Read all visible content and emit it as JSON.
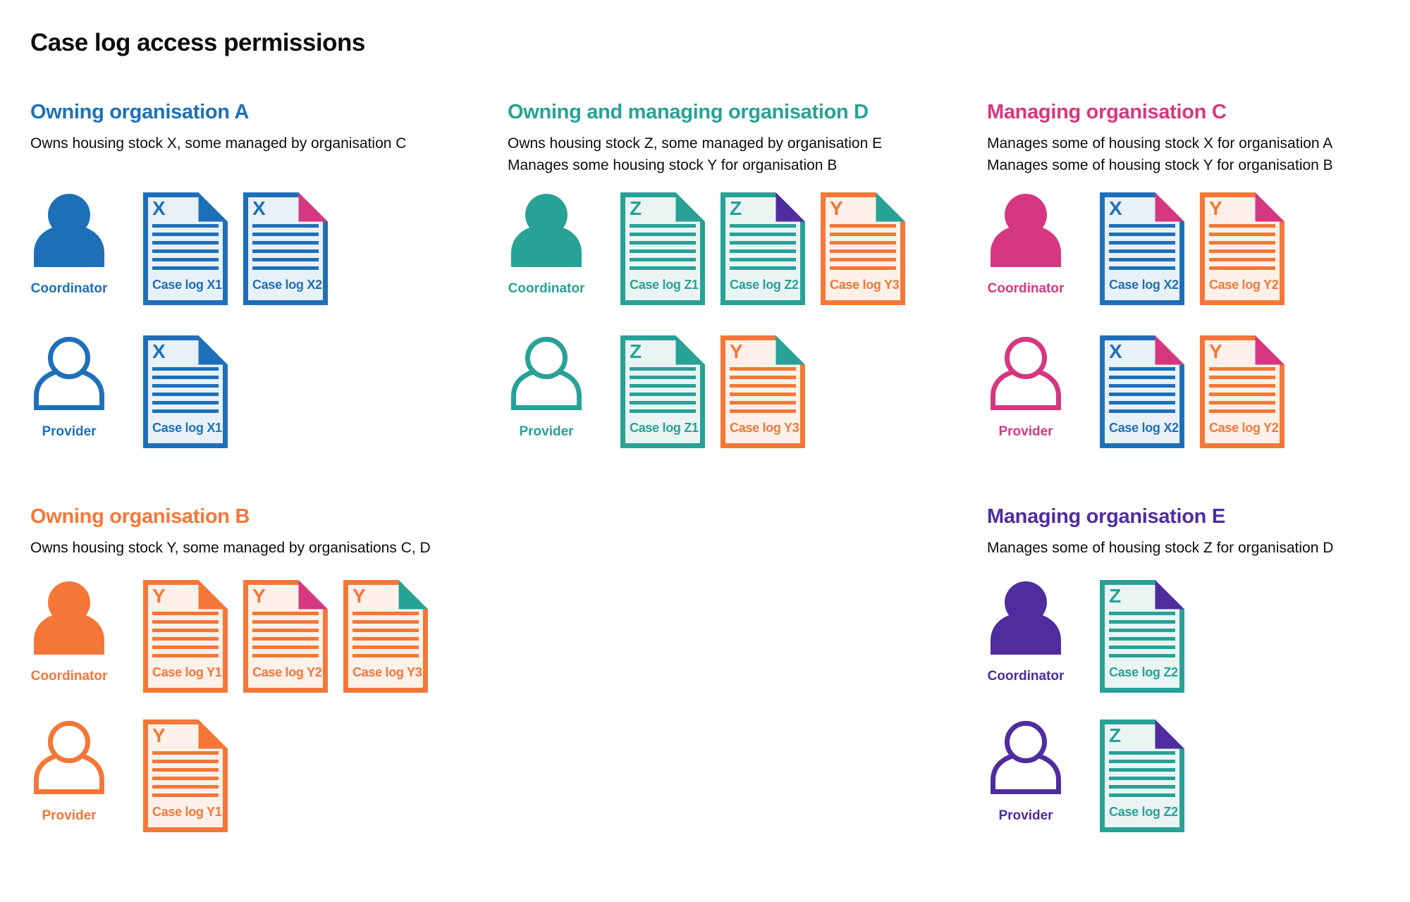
{
  "page_title": "Case log access permissions",
  "palette": {
    "blue": {
      "main": "#1d70b8",
      "tint": "#e9f1f8"
    },
    "teal": {
      "main": "#28a197",
      "tint": "#eaf5f3"
    },
    "pink": {
      "main": "#d53880",
      "tint": "#fbebf3"
    },
    "orange": {
      "main": "#f47738",
      "tint": "#fdf1ea"
    },
    "purple": {
      "main": "#4f2d9e",
      "tint": "#ece8f5"
    },
    "text": "#0b0c0c"
  },
  "sections": [
    {
      "id": "owning-organisation-a",
      "title": "Owning organisation A",
      "color": "blue",
      "description_lines": [
        "Owns housing stock X, some managed by organisation C"
      ],
      "access_rows": [
        {
          "role_label": "Coordinator",
          "icon": "person-filled",
          "case_logs": [
            {
              "stock_letter": "X",
              "label": "Case log X1",
              "color": "blue",
              "fold_color": "blue"
            },
            {
              "stock_letter": "X",
              "label": "Case log X2",
              "color": "blue",
              "fold_color": "pink"
            }
          ]
        },
        {
          "role_label": "Provider",
          "icon": "person-outline",
          "case_logs": [
            {
              "stock_letter": "X",
              "label": "Case log X1",
              "color": "blue",
              "fold_color": "blue"
            }
          ]
        }
      ]
    },
    {
      "id": "owning-and-managing-organisation-d",
      "title": "Owning and managing organisation D",
      "color": "teal",
      "description_lines": [
        "Owns housing stock Z, some managed by organisation E",
        "Manages some housing stock Y for organisation B"
      ],
      "access_rows": [
        {
          "role_label": "Coordinator",
          "icon": "person-filled",
          "case_logs": [
            {
              "stock_letter": "Z",
              "label": "Case log Z1",
              "color": "teal",
              "fold_color": "teal"
            },
            {
              "stock_letter": "Z",
              "label": "Case log Z2",
              "color": "teal",
              "fold_color": "purple"
            },
            {
              "stock_letter": "Y",
              "label": "Case log Y3",
              "color": "orange",
              "fold_color": "teal"
            }
          ]
        },
        {
          "role_label": "Provider",
          "icon": "person-outline",
          "case_logs": [
            {
              "stock_letter": "Z",
              "label": "Case log Z1",
              "color": "teal",
              "fold_color": "teal"
            },
            {
              "stock_letter": "Y",
              "label": "Case log Y3",
              "color": "orange",
              "fold_color": "teal"
            }
          ]
        }
      ]
    },
    {
      "id": "managing-organisation-c",
      "title": "Managing organisation C",
      "color": "pink",
      "description_lines": [
        "Manages some of housing stock X for organisation A",
        "Manages some of housing stock Y for organisation B"
      ],
      "access_rows": [
        {
          "role_label": "Coordinator",
          "icon": "person-filled",
          "case_logs": [
            {
              "stock_letter": "X",
              "label": "Case log X2",
              "color": "blue",
              "fold_color": "pink"
            },
            {
              "stock_letter": "Y",
              "label": "Case log Y2",
              "color": "orange",
              "fold_color": "pink"
            }
          ]
        },
        {
          "role_label": "Provider",
          "icon": "person-outline",
          "case_logs": [
            {
              "stock_letter": "X",
              "label": "Case log X2",
              "color": "blue",
              "fold_color": "pink"
            },
            {
              "stock_letter": "Y",
              "label": "Case log Y2",
              "color": "orange",
              "fold_color": "pink"
            }
          ]
        }
      ]
    },
    {
      "id": "owning-organisation-b",
      "title": "Owning organisation B",
      "color": "orange",
      "description_lines": [
        "Owns housing stock Y, some managed by organisations C, D"
      ],
      "access_rows": [
        {
          "role_label": "Coordinator",
          "icon": "person-filled",
          "case_logs": [
            {
              "stock_letter": "Y",
              "label": "Case log Y1",
              "color": "orange",
              "fold_color": "orange"
            },
            {
              "stock_letter": "Y",
              "label": "Case log Y2",
              "color": "orange",
              "fold_color": "pink"
            },
            {
              "stock_letter": "Y",
              "label": "Case log Y3",
              "color": "orange",
              "fold_color": "teal"
            }
          ]
        },
        {
          "role_label": "Provider",
          "icon": "person-outline",
          "case_logs": [
            {
              "stock_letter": "Y",
              "label": "Case log Y1",
              "color": "orange",
              "fold_color": "orange"
            }
          ]
        }
      ]
    },
    {
      "id": "managing-organisation-e",
      "title": "Managing organisation E",
      "color": "purple",
      "description_lines": [
        "Manages some of housing stock Z for organisation D"
      ],
      "access_rows": [
        {
          "role_label": "Coordinator",
          "icon": "person-filled",
          "case_logs": [
            {
              "stock_letter": "Z",
              "label": "Case log Z2",
              "color": "teal",
              "fold_color": "purple"
            }
          ]
        },
        {
          "role_label": "Provider",
          "icon": "person-outline",
          "case_logs": [
            {
              "stock_letter": "Z",
              "label": "Case log Z2",
              "color": "teal",
              "fold_color": "purple"
            }
          ]
        }
      ]
    }
  ]
}
